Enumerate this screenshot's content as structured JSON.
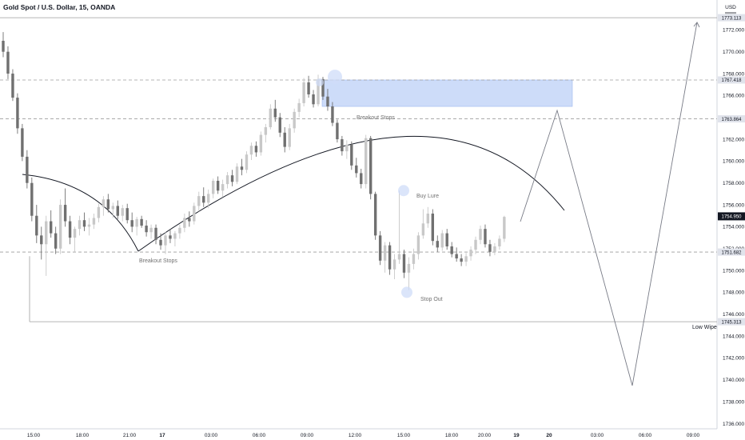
{
  "chart_data": {
    "type": "candlestick",
    "title": "Gold Spot / U.S. Dollar, 15, OANDA",
    "currency": "USD",
    "y_ticks": [
      1772,
      1770,
      1768,
      1766,
      1764,
      1762,
      1760,
      1758,
      1756,
      1754,
      1752,
      1750,
      1748,
      1746,
      1744,
      1742,
      1740,
      1738,
      1736
    ],
    "ylim": [
      1735.5,
      1774
    ],
    "x_ticks": [
      "15:00",
      "18:00",
      "21:00",
      "17",
      "03:00",
      "06:00",
      "09:00",
      "12:00",
      "15:00",
      "18:00",
      "20:00",
      "19",
      "20",
      "03:00",
      "06:00",
      "09:00"
    ],
    "price_levels": [
      {
        "label": "1773.113",
        "value": 1773.113,
        "style": "solid",
        "color": "#9e9e9e"
      },
      {
        "label": "1767.418",
        "value": 1767.418,
        "style": "dashed",
        "color": "#9e9e9e"
      },
      {
        "label": "1763.864",
        "value": 1763.864,
        "style": "dashed",
        "color": "#9e9e9e"
      },
      {
        "label": "1751.682",
        "value": 1751.682,
        "style": "dashed",
        "color": "#9e9e9e"
      },
      {
        "label": "1745.313",
        "value": 1745.313,
        "style": "solid",
        "color": "#9e9e9e"
      }
    ],
    "last_price": {
      "label": "1754.950",
      "value": 1754.95
    },
    "annotations": [
      "Breakout Stops",
      "Breakout Stops",
      "Buy Lure",
      "Stop Out",
      "Low Wipe"
    ],
    "colors": {
      "up": "#c8c8c8",
      "down": "#707070",
      "zone": "#bcd0f7",
      "highlight": "#cfdcf8",
      "line": "#131722",
      "projection": "#787b86"
    },
    "candles": [
      [
        1771,
        1771.8,
        1769.5,
        1770
      ],
      [
        1770,
        1770.5,
        1767.5,
        1768
      ],
      [
        1768,
        1768.4,
        1765.5,
        1765.8
      ],
      [
        1765.8,
        1766.2,
        1762.5,
        1763
      ],
      [
        1763,
        1763.4,
        1760,
        1760.4
      ],
      [
        1760.4,
        1761,
        1757.5,
        1758
      ],
      [
        1758,
        1758.5,
        1754.5,
        1755
      ],
      [
        1755,
        1756,
        1752.5,
        1753.2
      ],
      [
        1753.2,
        1754,
        1751,
        1752.4
      ],
      [
        1752.4,
        1755,
        1749.5,
        1754.5
      ],
      [
        1754.5,
        1755.5,
        1753,
        1753.4
      ],
      [
        1753.4,
        1754,
        1751.5,
        1752
      ],
      [
        1752,
        1756.5,
        1751.5,
        1756
      ],
      [
        1756,
        1757.5,
        1754,
        1754.5
      ],
      [
        1754.5,
        1755,
        1752.4,
        1753
      ],
      [
        1753,
        1754,
        1751.7,
        1753.8
      ],
      [
        1753.8,
        1755,
        1753.2,
        1754.6
      ],
      [
        1754.6,
        1755.3,
        1753.6,
        1754
      ],
      [
        1754,
        1754.8,
        1753.2,
        1754.2
      ],
      [
        1754.2,
        1755.2,
        1753.8,
        1754.8
      ],
      [
        1754.8,
        1756.1,
        1754.4,
        1755.8
      ],
      [
        1755.8,
        1756.8,
        1755,
        1756.5
      ],
      [
        1756.5,
        1757,
        1755.3,
        1755.6
      ],
      [
        1755.6,
        1756.2,
        1754.8,
        1755.9
      ],
      [
        1755.9,
        1756.4,
        1754.7,
        1755
      ],
      [
        1755,
        1756,
        1754.5,
        1755.7
      ],
      [
        1755.7,
        1756.1,
        1754.3,
        1754.6
      ],
      [
        1754.6,
        1755.3,
        1753.5,
        1754
      ],
      [
        1754,
        1754.9,
        1753.2,
        1754.7
      ],
      [
        1754.7,
        1755,
        1753.9,
        1754.1
      ],
      [
        1754.1,
        1754.6,
        1753.1,
        1753.5
      ],
      [
        1753.5,
        1754.2,
        1752.9,
        1753.9
      ],
      [
        1753.9,
        1754.2,
        1752.4,
        1752.8
      ],
      [
        1752.8,
        1753.4,
        1751.9,
        1752.3
      ],
      [
        1752.3,
        1753.5,
        1751.5,
        1753.2
      ],
      [
        1753.2,
        1753.8,
        1752.5,
        1752.9
      ],
      [
        1752.9,
        1753.6,
        1752.2,
        1753.4
      ],
      [
        1753.4,
        1754.2,
        1752.9,
        1753.9
      ],
      [
        1753.9,
        1755.2,
        1753.5,
        1754.8
      ],
      [
        1754.8,
        1755.4,
        1754,
        1754.5
      ],
      [
        1754.5,
        1756.2,
        1754.2,
        1755.9
      ],
      [
        1755.9,
        1757.2,
        1755.4,
        1756.8
      ],
      [
        1756.8,
        1757.6,
        1755.8,
        1756.2
      ],
      [
        1756.2,
        1757.4,
        1755.7,
        1757
      ],
      [
        1757,
        1758.4,
        1756.6,
        1758.2
      ],
      [
        1758.2,
        1758.6,
        1757,
        1757.3
      ],
      [
        1757.3,
        1758.3,
        1756.7,
        1757.9
      ],
      [
        1757.9,
        1759,
        1757.5,
        1758.7
      ],
      [
        1758.7,
        1759.2,
        1757.7,
        1758.1
      ],
      [
        1758.1,
        1759.8,
        1757.9,
        1759.5
      ],
      [
        1759.5,
        1760.2,
        1758.7,
        1759.2
      ],
      [
        1759.2,
        1760.9,
        1758.9,
        1760.6
      ],
      [
        1760.6,
        1761.7,
        1760.1,
        1761.4
      ],
      [
        1761.4,
        1761.8,
        1760.4,
        1760.8
      ],
      [
        1760.8,
        1762.7,
        1760.5,
        1762.4
      ],
      [
        1762.4,
        1763.4,
        1761.7,
        1763.1
      ],
      [
        1763.1,
        1765.2,
        1762.9,
        1764.8
      ],
      [
        1764.8,
        1765.6,
        1763.6,
        1764
      ],
      [
        1764,
        1764.4,
        1762.2,
        1762.6
      ],
      [
        1762.6,
        1763.1,
        1760.8,
        1761.3
      ],
      [
        1761.3,
        1763.4,
        1761,
        1763
      ],
      [
        1763,
        1764.8,
        1762.6,
        1764.5
      ],
      [
        1764.5,
        1765.7,
        1764,
        1765.3
      ],
      [
        1765.3,
        1767.6,
        1765,
        1767.2
      ],
      [
        1767.2,
        1767.8,
        1765.8,
        1766.1
      ],
      [
        1766.1,
        1766.5,
        1764.9,
        1765.2
      ],
      [
        1765.2,
        1767.9,
        1765,
        1767.5
      ],
      [
        1767.5,
        1767.7,
        1765.6,
        1765.9
      ],
      [
        1765.9,
        1766.6,
        1764.6,
        1765
      ],
      [
        1765,
        1765.4,
        1763.2,
        1763.5
      ],
      [
        1763.5,
        1763.8,
        1761.7,
        1762
      ],
      [
        1762,
        1762.3,
        1760.5,
        1760.9
      ],
      [
        1760.9,
        1761.9,
        1760.2,
        1761.5
      ],
      [
        1761.5,
        1761.8,
        1759.2,
        1759.6
      ],
      [
        1759.6,
        1760.3,
        1758.5,
        1758.9
      ],
      [
        1758.9,
        1759.3,
        1757.5,
        1757.9
      ],
      [
        1757.9,
        1762.4,
        1757.5,
        1762.1
      ],
      [
        1762.1,
        1762.3,
        1756.5,
        1757
      ],
      [
        1757,
        1757.2,
        1752.8,
        1753.2
      ],
      [
        1753.2,
        1753.6,
        1750.5,
        1750.9
      ],
      [
        1750.9,
        1752.6,
        1749.8,
        1752.3
      ],
      [
        1752.3,
        1752.6,
        1749.6,
        1750.1
      ],
      [
        1750.1,
        1751.5,
        1749.2,
        1751
      ],
      [
        1751,
        1757.3,
        1750.6,
        1751.5
      ],
      [
        1751.5,
        1751.9,
        1749.3,
        1749.8
      ],
      [
        1749.8,
        1751.2,
        1748.2,
        1750.6
      ],
      [
        1750.6,
        1752,
        1750.1,
        1751.5
      ],
      [
        1751.5,
        1753.5,
        1751,
        1753.2
      ],
      [
        1753.2,
        1755.6,
        1752.9,
        1754.3
      ],
      [
        1754.3,
        1755.8,
        1753.9,
        1755.2
      ],
      [
        1755.2,
        1755.6,
        1752.3,
        1752.7
      ],
      [
        1752.7,
        1753.2,
        1751.7,
        1752.1
      ],
      [
        1752.1,
        1753.7,
        1751.8,
        1753.4
      ],
      [
        1753.4,
        1753.8,
        1751.9,
        1752.2
      ],
      [
        1752.2,
        1752.6,
        1751.2,
        1751.5
      ],
      [
        1751.5,
        1752.1,
        1750.8,
        1751.1
      ],
      [
        1751.1,
        1751.5,
        1750.4,
        1750.8
      ],
      [
        1750.8,
        1751.6,
        1750.4,
        1751.3
      ],
      [
        1751.3,
        1752.2,
        1750.9,
        1751.9
      ],
      [
        1751.9,
        1753.1,
        1751.5,
        1752.8
      ],
      [
        1752.8,
        1754.1,
        1752.4,
        1753.8
      ],
      [
        1753.8,
        1754.2,
        1752.1,
        1752.4
      ],
      [
        1752.4,
        1752.8,
        1751.3,
        1751.7
      ],
      [
        1751.7,
        1752.5,
        1751.4,
        1752.2
      ],
      [
        1752.2,
        1753.2,
        1751.9,
        1752.9
      ],
      [
        1752.9,
        1755,
        1752.6,
        1754.9
      ]
    ]
  }
}
